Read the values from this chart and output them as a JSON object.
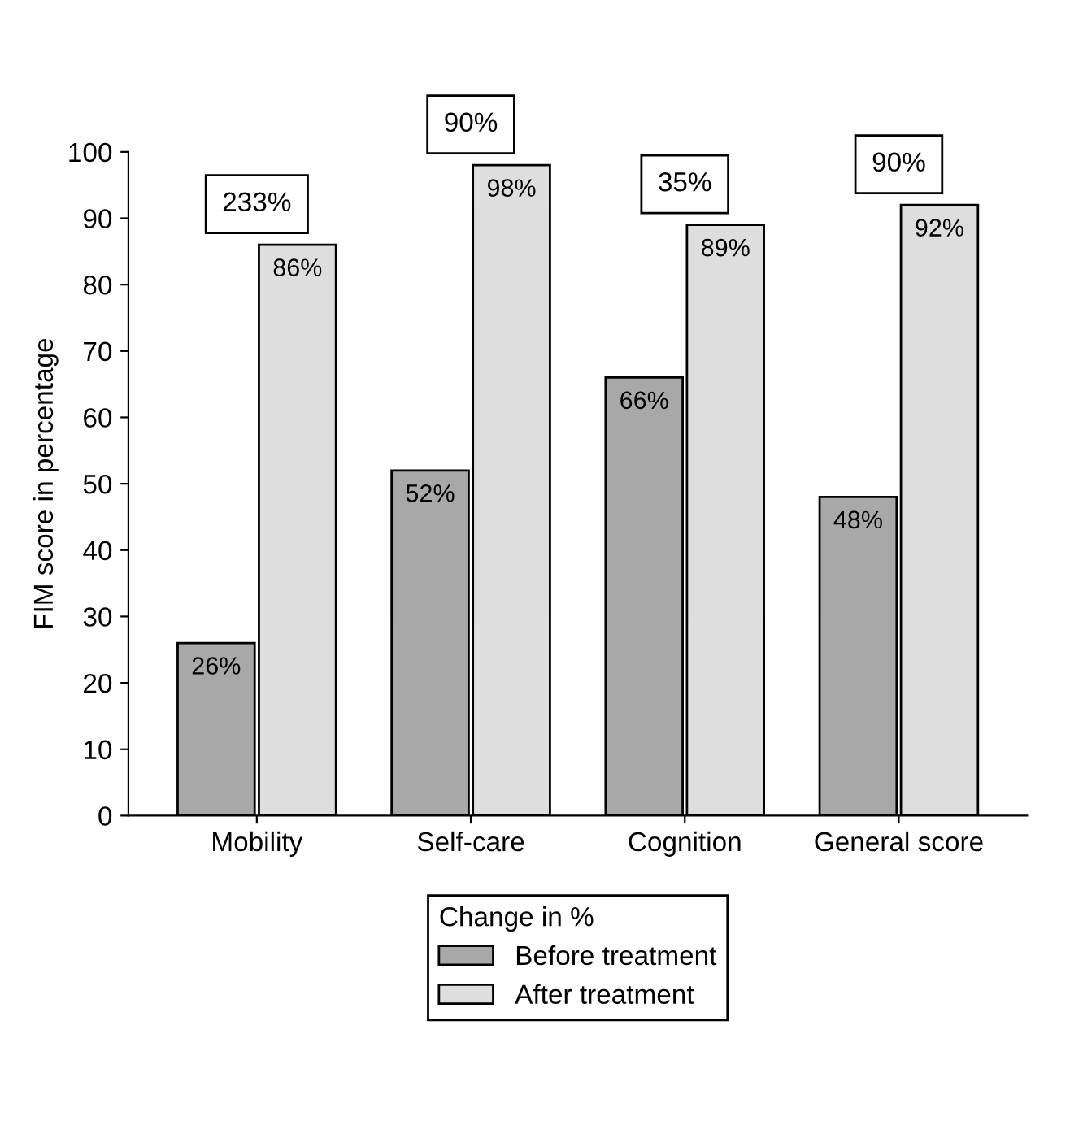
{
  "chart_data": {
    "type": "bar",
    "ylabel": "FIM score in percentage",
    "legend_title": "Change in %",
    "categories": [
      "Mobility",
      "Self-care",
      "Cognition",
      "General score"
    ],
    "series": [
      {
        "name": "Before treatment",
        "color": "#a8a8a8",
        "values": [
          26,
          52,
          66,
          48
        ],
        "value_labels": [
          "26%",
          "52%",
          "66%",
          "48%"
        ]
      },
      {
        "name": "After treatment",
        "color": "#dedede",
        "values": [
          86,
          98,
          89,
          92
        ],
        "value_labels": [
          "86%",
          "98%",
          "89%",
          "92%"
        ]
      }
    ],
    "annotations": [
      "233%",
      "90%",
      "35%",
      "90%"
    ],
    "ylim": [
      0,
      100
    ],
    "yticks": [
      0,
      10,
      20,
      30,
      40,
      50,
      60,
      70,
      80,
      90,
      100
    ],
    "grid": false,
    "legend": "bottom"
  }
}
